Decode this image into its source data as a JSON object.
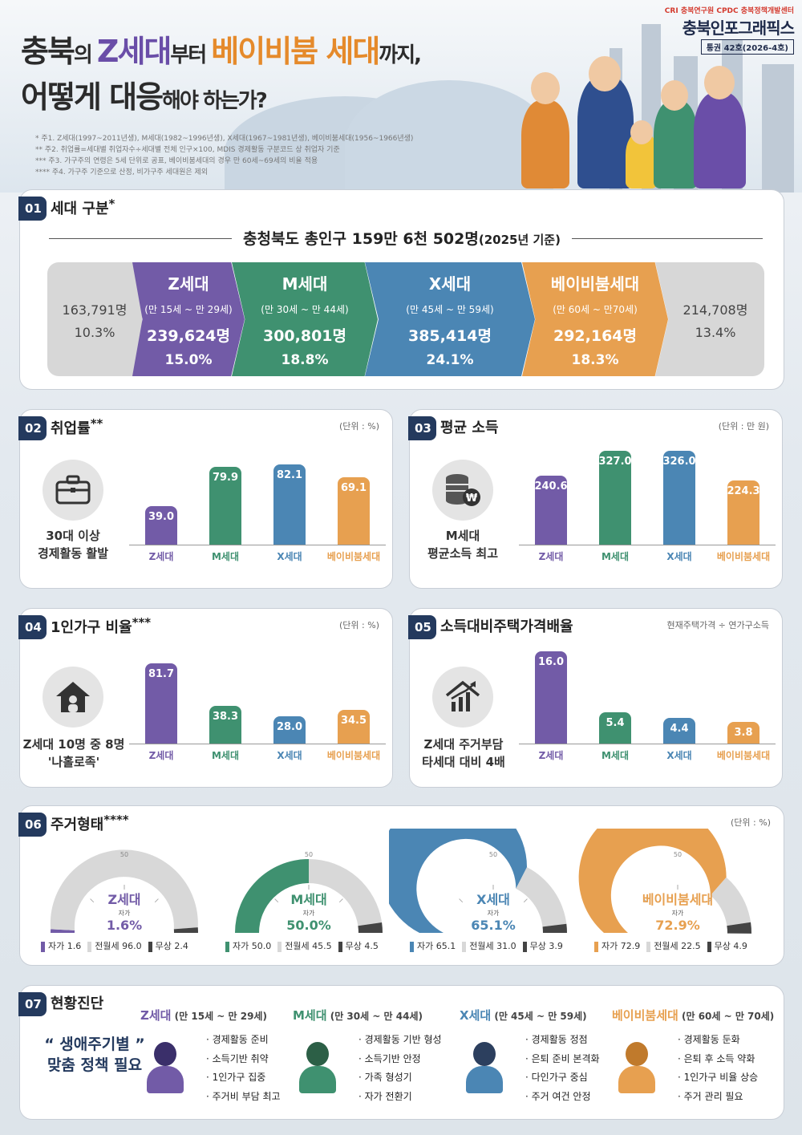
{
  "header": {
    "orgs": "CRI 충북연구원 CPDC 충북정책개발센터",
    "brand": "충북인포그래픽스",
    "issue": "통권 42호(2026-4호)",
    "title_parts": {
      "p1": "충북",
      "p2": "의 ",
      "p3": "Z세대",
      "p4": "부터 ",
      "p5": "베이비붐 세대",
      "p6": "까지,",
      "p7": "어떻게 대응",
      "p8": "해야 하는가?"
    },
    "notes": [
      "*     주1. Z세대(1997~2011년생), M세대(1982~1996년생), X세대(1967~1981년생), 베이비붐세대(1956~1966년생)",
      "**    주2. 취업률=세대별 취업자수÷세대별 전체 인구×100, MDIS 경제활동 구분코드 상 취업자 기준",
      "***   주3. 가구주의 연령은 5세 단위로 공표, 베이비붐세대의 경우 만 60세~69세의 비율 적용",
      "****  주4. 가구주 기준으로 산정, 비가구주 세대원은 제외"
    ]
  },
  "colors": {
    "z": "#725ba7",
    "m": "#3f9170",
    "x": "#4b86b4",
    "b": "#e7a050",
    "gray": "#d7d7d7",
    "navy": "#243a5e"
  },
  "sections": {
    "s1": {
      "num": "01",
      "title": "세대 구분",
      "mark": "*",
      "pop_title": "충청북도 총인구 159만 6천 502명",
      "pop_note": "(2025년 기준)",
      "left": {
        "count": "163,791명",
        "pct": "10.3%"
      },
      "right": {
        "count": "214,708명",
        "pct": "13.4%"
      },
      "groups": [
        {
          "name": "Z세대",
          "age": "(만 15세 ~ 만 29세)",
          "count": "239,624명",
          "pct": "15.0%"
        },
        {
          "name": "M세대",
          "age": "(만 30세 ~ 만 44세)",
          "count": "300,801명",
          "pct": "18.8%"
        },
        {
          "name": "X세대",
          "age": "(만 45세 ~ 만 59세)",
          "count": "385,414명",
          "pct": "24.1%"
        },
        {
          "name": "베이비붐세대",
          "age": "(만 60세 ~ 만70세)",
          "count": "292,164명",
          "pct": "18.3%"
        }
      ]
    },
    "s2": {
      "num": "02",
      "title": "취업률",
      "mark": "**",
      "unit": "(단위 : %)",
      "caption1": "30대 이상",
      "caption2": "경제활동 활발"
    },
    "s3": {
      "num": "03",
      "title": "평균 소득",
      "unit": "(단위 : 만 원)",
      "caption1": "M세대",
      "caption2": "평균소득 최고"
    },
    "s4": {
      "num": "04",
      "title": "1인가구 비율",
      "mark": "***",
      "unit": "(단위 : %)",
      "caption1": "Z세대 10명 중 8명",
      "caption2": "'나홀로족'"
    },
    "s5": {
      "num": "05",
      "title": "소득대비주택가격배율",
      "unit": "현재주택가격 ÷ 연가구소득",
      "caption1": "Z세대 주거부담",
      "caption2": "타세대 대비 4배"
    },
    "s6": {
      "num": "06",
      "title": "주거형태",
      "mark": "****",
      "unit": "(단위 : %)",
      "own_label": "자가",
      "tick": "50"
    },
    "s7": {
      "num": "07",
      "title": "현황진단",
      "slogan1": "“ 생애주기별 ”",
      "slogan2": "맞춤 정책 필요",
      "groups": [
        {
          "name": "Z세대",
          "age": "(만 15세 ~ 만 29세)",
          "items": [
            "· 경제활동 준비",
            "· 소득기반 취약",
            "· 1인가구 집중",
            "· 주거비 부담 최고"
          ]
        },
        {
          "name": "M세대",
          "age": "(만 30세 ~ 만 44세)",
          "items": [
            "· 경제활동 기반 형성",
            "· 소득기반 안정",
            "· 가족 형성기",
            "· 자가 전환기"
          ]
        },
        {
          "name": "X세대",
          "age": "(만 45세 ~ 만 59세)",
          "items": [
            "· 경제활동 정점",
            "· 은퇴 준비 본격화",
            "· 다인가구 중심",
            "· 주거 여건 안정"
          ]
        },
        {
          "name": "베이비붐세대",
          "age": "(만 60세 ~ 만 70세)",
          "items": [
            "· 경제활동 둔화",
            "· 은퇴 후 소득 약화",
            "· 1인가구 비율 상승",
            "· 주거 관리 필요"
          ]
        }
      ]
    }
  },
  "chart_data": [
    {
      "type": "bar",
      "title": "취업률",
      "categories": [
        "Z세대",
        "M세대",
        "X세대",
        "베이비붐세대"
      ],
      "values": [
        39.0,
        79.9,
        82.1,
        69.1
      ],
      "ylim": [
        0,
        100
      ]
    },
    {
      "type": "bar",
      "title": "평균 소득",
      "categories": [
        "Z세대",
        "M세대",
        "X세대",
        "베이비붐세대"
      ],
      "values": [
        240.6,
        327.0,
        326.0,
        224.3
      ],
      "ylim": [
        0,
        340
      ]
    },
    {
      "type": "bar",
      "title": "1인가구 비율",
      "categories": [
        "Z세대",
        "M세대",
        "X세대",
        "베이비붐세대"
      ],
      "values": [
        81.7,
        38.3,
        28.0,
        34.5
      ],
      "ylim": [
        0,
        100
      ]
    },
    {
      "type": "bar",
      "title": "소득대비주택가격배율",
      "categories": [
        "Z세대",
        "M세대",
        "X세대",
        "베이비붐세대"
      ],
      "values": [
        16.0,
        5.4,
        4.4,
        3.8
      ],
      "ylim": [
        0,
        17
      ]
    },
    {
      "type": "gauge",
      "title": "주거형태",
      "categories": [
        "Z세대",
        "M세대",
        "X세대",
        "베이비붐세대"
      ],
      "series": [
        {
          "name": "자가",
          "values": [
            1.6,
            50.0,
            65.1,
            72.9
          ]
        },
        {
          "name": "전월세",
          "values": [
            96.0,
            45.5,
            31.0,
            22.5
          ]
        },
        {
          "name": "무상",
          "values": [
            2.4,
            4.5,
            3.9,
            4.9
          ]
        }
      ],
      "labels": [
        {
          "own": "1.6%",
          "legend": [
            "자가 1.6",
            "전월세 96.0",
            "무상 2.4"
          ]
        },
        {
          "own": "50.0%",
          "legend": [
            "자가 50.0",
            "전월세 45.5",
            "무상 4.5"
          ]
        },
        {
          "own": "65.1%",
          "legend": [
            "자가 65.1",
            "전월세 31.0",
            "무상 3.9"
          ]
        },
        {
          "own": "72.9%",
          "legend": [
            "자가 72.9",
            "전월세 22.5",
            "무상 4.9"
          ]
        }
      ]
    }
  ]
}
